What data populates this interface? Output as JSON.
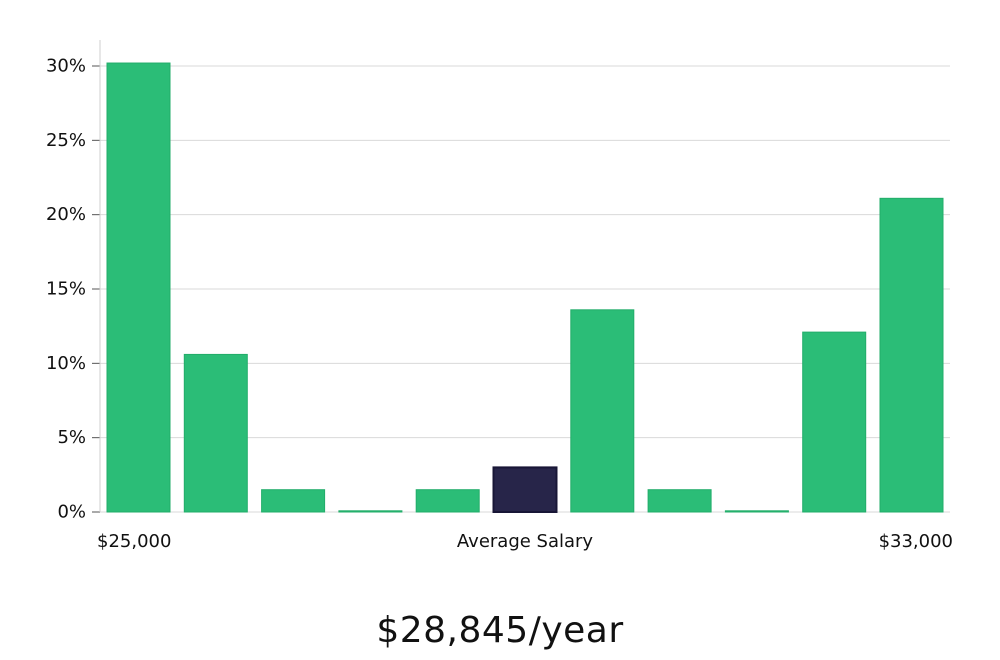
{
  "chart_data": {
    "type": "bar",
    "title": "",
    "xlabel": "Average Salary",
    "ylabel": "",
    "x_range_labels": {
      "min": "$25,000",
      "max": "$33,000"
    },
    "y_ticks": [
      "0%",
      "5%",
      "10%",
      "15%",
      "20%",
      "25%",
      "30%"
    ],
    "ylim": [
      0,
      30
    ],
    "grid": true,
    "values": [
      30.2,
      10.6,
      1.5,
      0.0,
      1.5,
      3.0,
      13.6,
      1.5,
      0.0,
      12.1,
      21.1
    ],
    "highlight_index": 5,
    "colors": {
      "bar": "#2bbd77",
      "bar_edge": "#22ad6a",
      "highlight": "#272549",
      "highlight_edge": "#181636",
      "grid": "#d9d9d9",
      "axis": "#cfcfcf"
    }
  },
  "summary": {
    "salary_text": "$28,845/year"
  }
}
